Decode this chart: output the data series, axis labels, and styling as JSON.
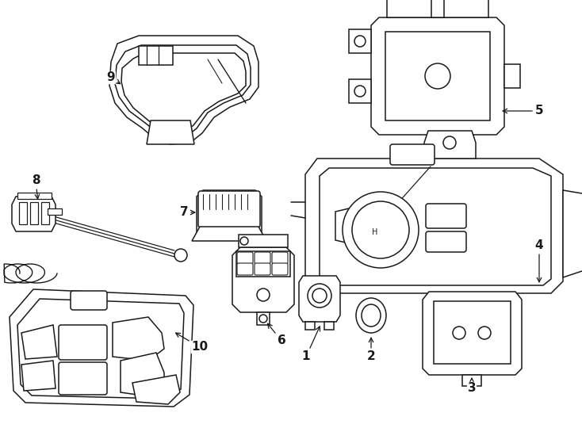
{
  "background_color": "#ffffff",
  "line_color": "#1a1a1a",
  "fig_width": 7.34,
  "fig_height": 5.4,
  "dpi": 100,
  "label_fontsize": 11,
  "lw": 1.1
}
